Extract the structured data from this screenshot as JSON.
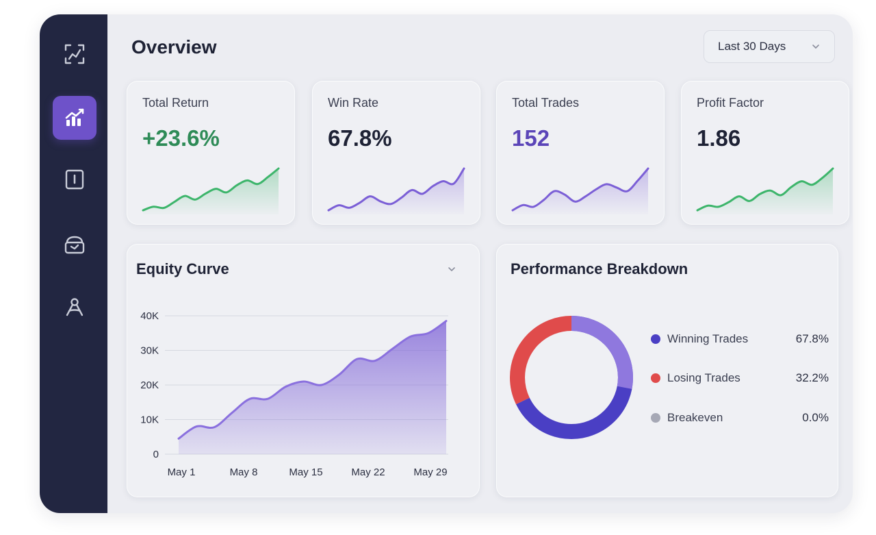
{
  "sidebar": {
    "items": [
      {
        "icon": "chart-expand-icon",
        "active": false
      },
      {
        "icon": "analytics-chart-icon",
        "active": true
      },
      {
        "icon": "book-icon",
        "active": false
      },
      {
        "icon": "briefcase-icon",
        "active": false
      },
      {
        "icon": "tools-icon",
        "active": false
      }
    ]
  },
  "header": {
    "title": "Overview",
    "range_label": "Last 30 Days"
  },
  "kpis": [
    {
      "label": "Total Return",
      "value": "+23.6%",
      "color": "#2e8b57",
      "trend": [
        2,
        5,
        4,
        9,
        14,
        11,
        16,
        20,
        17,
        23,
        27,
        24,
        30,
        37
      ]
    },
    {
      "label": "Win Rate",
      "value": "67.8%",
      "color": "#1e2235",
      "trend": [
        3,
        7,
        5,
        9,
        14,
        10,
        8,
        13,
        19,
        16,
        22,
        26,
        24,
        36
      ]
    },
    {
      "label": "Total Trades",
      "value": "152",
      "color": "#5b45b8",
      "trend": [
        3,
        6,
        5,
        9,
        14,
        12,
        8,
        11,
        15,
        18,
        16,
        14,
        20,
        27
      ]
    },
    {
      "label": "Profit Factor",
      "value": "1.86",
      "color": "#1e2235",
      "trend": [
        2,
        6,
        5,
        9,
        14,
        10,
        16,
        19,
        15,
        22,
        27,
        24,
        30,
        38
      ]
    }
  ],
  "colors": {
    "accent": "#6e52c9",
    "green": "#3db56b",
    "purple": "#7b5fd6",
    "red": "#e04b4b",
    "grey": "#a6a8b5"
  },
  "equity": {
    "title": "Equity Curve",
    "chart_data": {
      "type": "area",
      "x": [
        "May 1",
        "May 3",
        "May 5",
        "May 7",
        "May 9",
        "May 11",
        "May 13",
        "May 15",
        "May 17",
        "May 19",
        "May 21",
        "May 23",
        "May 25",
        "May 27",
        "May 29",
        "May 30"
      ],
      "x_ticks": [
        "May 1",
        "May 8",
        "May 15",
        "May 22",
        "May 29"
      ],
      "y_ticks": [
        "0",
        "10K",
        "20K",
        "30K",
        "40K"
      ],
      "values": [
        4500,
        8000,
        7800,
        12000,
        16000,
        16000,
        19500,
        21000,
        20000,
        23000,
        27500,
        27000,
        30500,
        34000,
        35000,
        38500
      ],
      "ylim": [
        0,
        40000
      ]
    }
  },
  "breakdown": {
    "title": "Performance Breakdown",
    "chart_data": {
      "type": "pie",
      "slices": [
        {
          "label": "Winning Trades",
          "value": "67.8%",
          "pct": 67.8,
          "color": "#4a3fc4"
        },
        {
          "label": "Losing Trades",
          "value": "32.2%",
          "pct": 32.2,
          "color": "#e04b4b"
        },
        {
          "label": "Breakeven",
          "value": "0.0%",
          "pct": 0,
          "color": "#a6a8b5"
        }
      ]
    }
  }
}
